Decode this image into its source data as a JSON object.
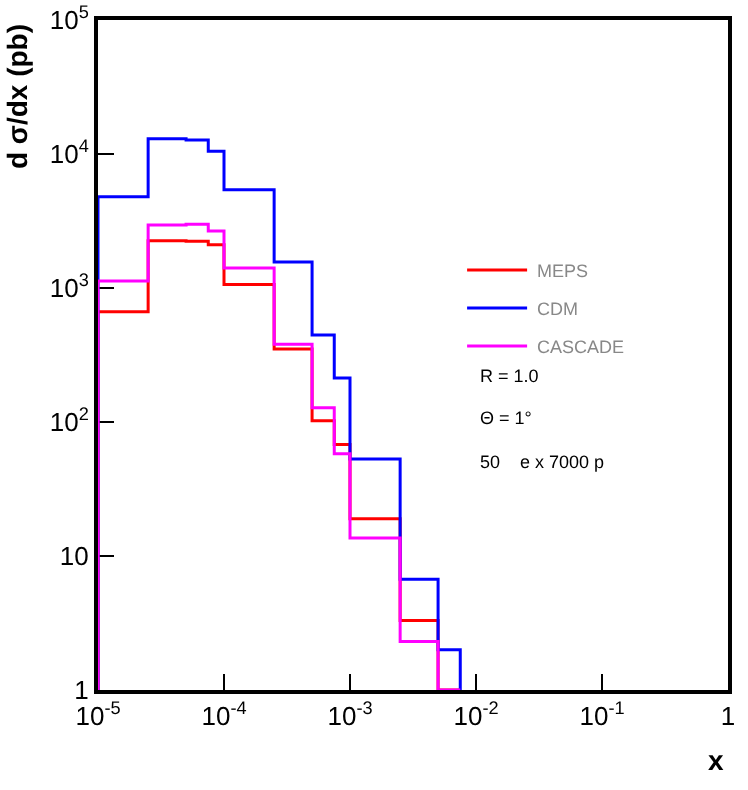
{
  "chart_data": {
    "type": "histogram",
    "xlabel": "x",
    "ylabel": "d σ/dx (pb)",
    "log": "xy",
    "grid": false,
    "legend": "right",
    "bins": [
      1e-05,
      2.5e-05,
      5e-05,
      7.5e-05,
      0.0001,
      0.00025,
      0.0005,
      0.00075,
      0.001,
      0.0025,
      0.005,
      0.0075
    ],
    "series": [
      {
        "name": "MEPS",
        "color": "#ff0000",
        "values": [
          665,
          2250,
          2230,
          2100,
          1060,
          350,
          102,
          68,
          19,
          3.3,
          null
        ]
      },
      {
        "name": "CDM",
        "color": "#0000ff",
        "values": [
          4800,
          13000,
          12700,
          10500,
          5400,
          1560,
          445,
          213,
          53,
          6.7,
          2.0
        ]
      },
      {
        "name": "CASCADE",
        "color": "#ff00ff",
        "values": [
          1130,
          2950,
          2990,
          2660,
          1410,
          380,
          128,
          58,
          13.6,
          2.3,
          null
        ]
      }
    ],
    "xlim": [
      1e-05,
      1
    ],
    "ylim": [
      1,
      100000
    ],
    "xticks": [
      {
        "value": 1e-05,
        "label": "10$^{-5}$"
      },
      {
        "value": 0.0001,
        "label": "10$^{-4}$"
      },
      {
        "value": 0.001,
        "label": "10$^{-3}$"
      },
      {
        "value": 0.01,
        "label": "10$^{-2}$"
      },
      {
        "value": 0.1,
        "label": "10$^{-1}$"
      },
      1
    ],
    "yticks": [
      1,
      10,
      {
        "value": 100,
        "label": "10$^{2}$"
      },
      {
        "value": 1000,
        "label": "10$^{3}$"
      },
      {
        "value": 10000,
        "label": "10$^{4}$"
      },
      {
        "value": 100000,
        "label": "10$^{5}$"
      }
    ],
    "annotations": [
      "R = 1.0",
      "Θ = 1°",
      "50    e x 7000 p"
    ]
  }
}
